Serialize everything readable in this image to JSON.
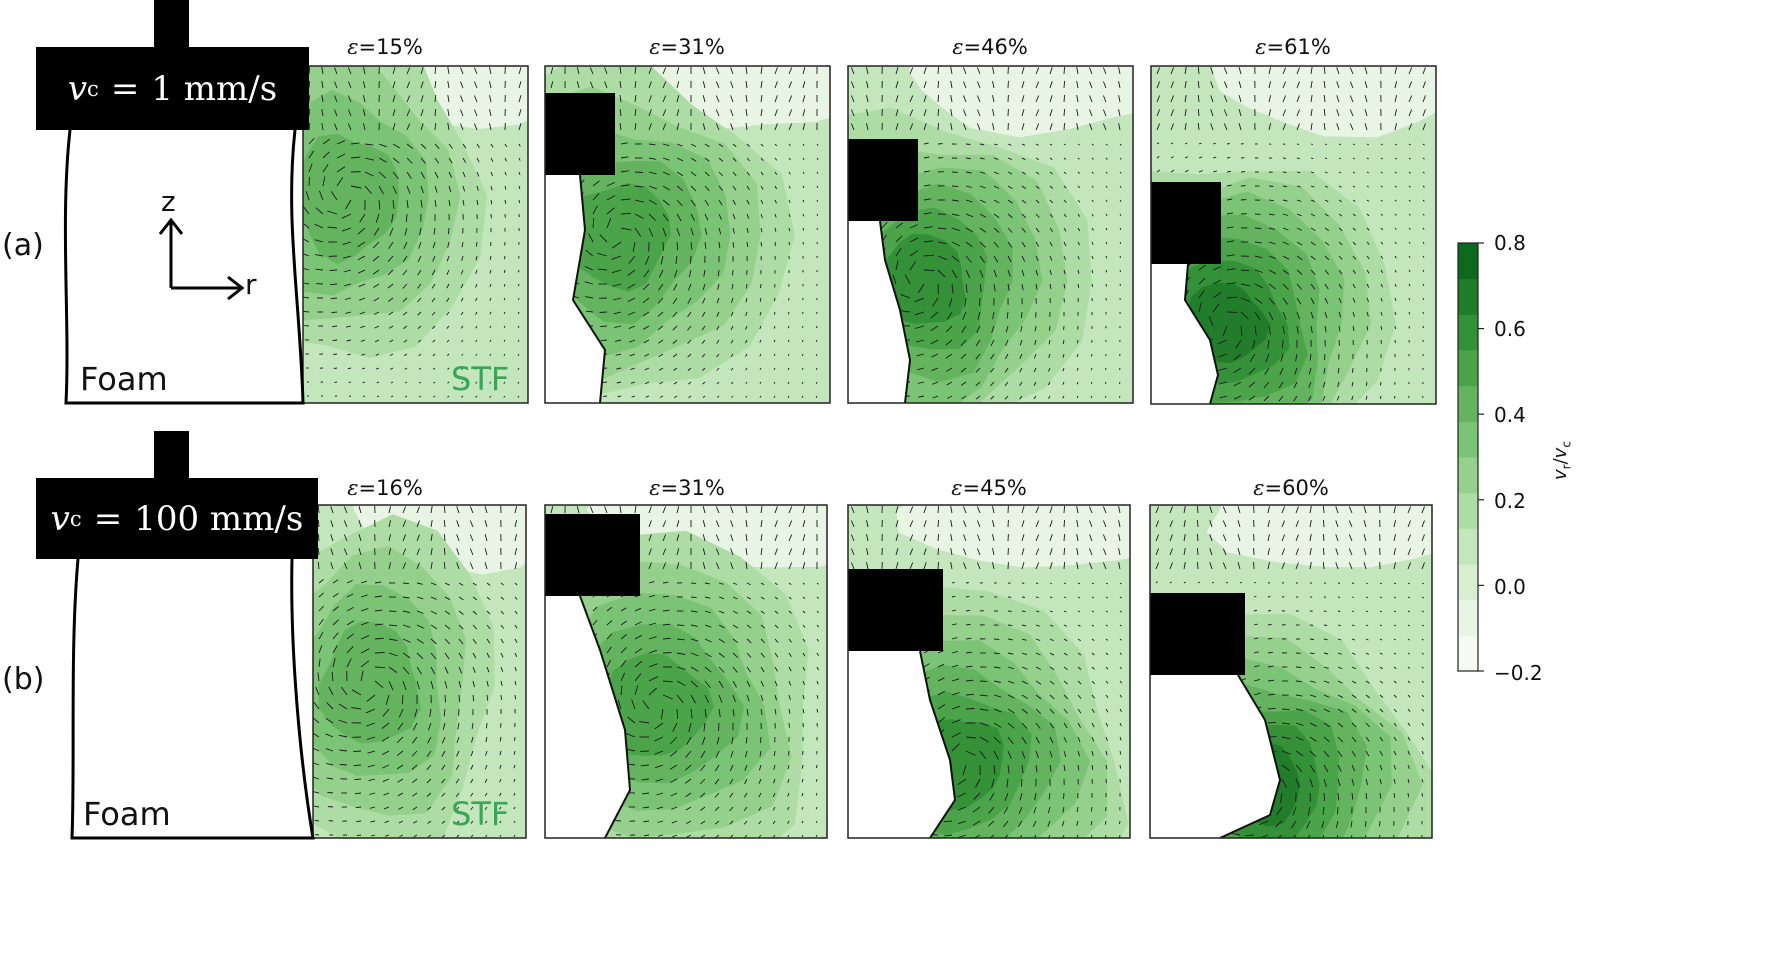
{
  "rows": [
    {
      "label": "(a)",
      "speed_value": "1",
      "speed_unit": "mm/s",
      "panels": [
        {
          "strain": "15%"
        },
        {
          "strain": "31%"
        },
        {
          "strain": "46%"
        },
        {
          "strain": "61%"
        }
      ]
    },
    {
      "label": "(b)",
      "speed_value": "100",
      "speed_unit": "mm/s",
      "panels": [
        {
          "strain": "16%"
        },
        {
          "strain": "31%"
        },
        {
          "strain": "45%"
        },
        {
          "strain": "60%"
        }
      ]
    }
  ],
  "eps_symbol": "ε",
  "schematic": {
    "foam_label": "Foam",
    "stf_label": "STF",
    "axis_z": "z",
    "axis_r": "r",
    "v_symbol": "v",
    "v_sub": "c"
  },
  "colorbar": {
    "label_main": "v",
    "label_sub_r": "r",
    "label_sub_c": "c",
    "ticks": [
      "0.8",
      "0.6",
      "0.4",
      "0.2",
      "0.0",
      "−0.2"
    ],
    "levels": 12,
    "colors": [
      "#f5fbf3",
      "#e8f5e4",
      "#d7eed1",
      "#c3e6bc",
      "#addda5",
      "#95d18d",
      "#7cc475",
      "#64b45f",
      "#4ca44a",
      "#359138",
      "#217d29",
      "#0b6a1c"
    ]
  },
  "colors": {
    "stf_text": "#3aa557",
    "frame": "#000000"
  }
}
